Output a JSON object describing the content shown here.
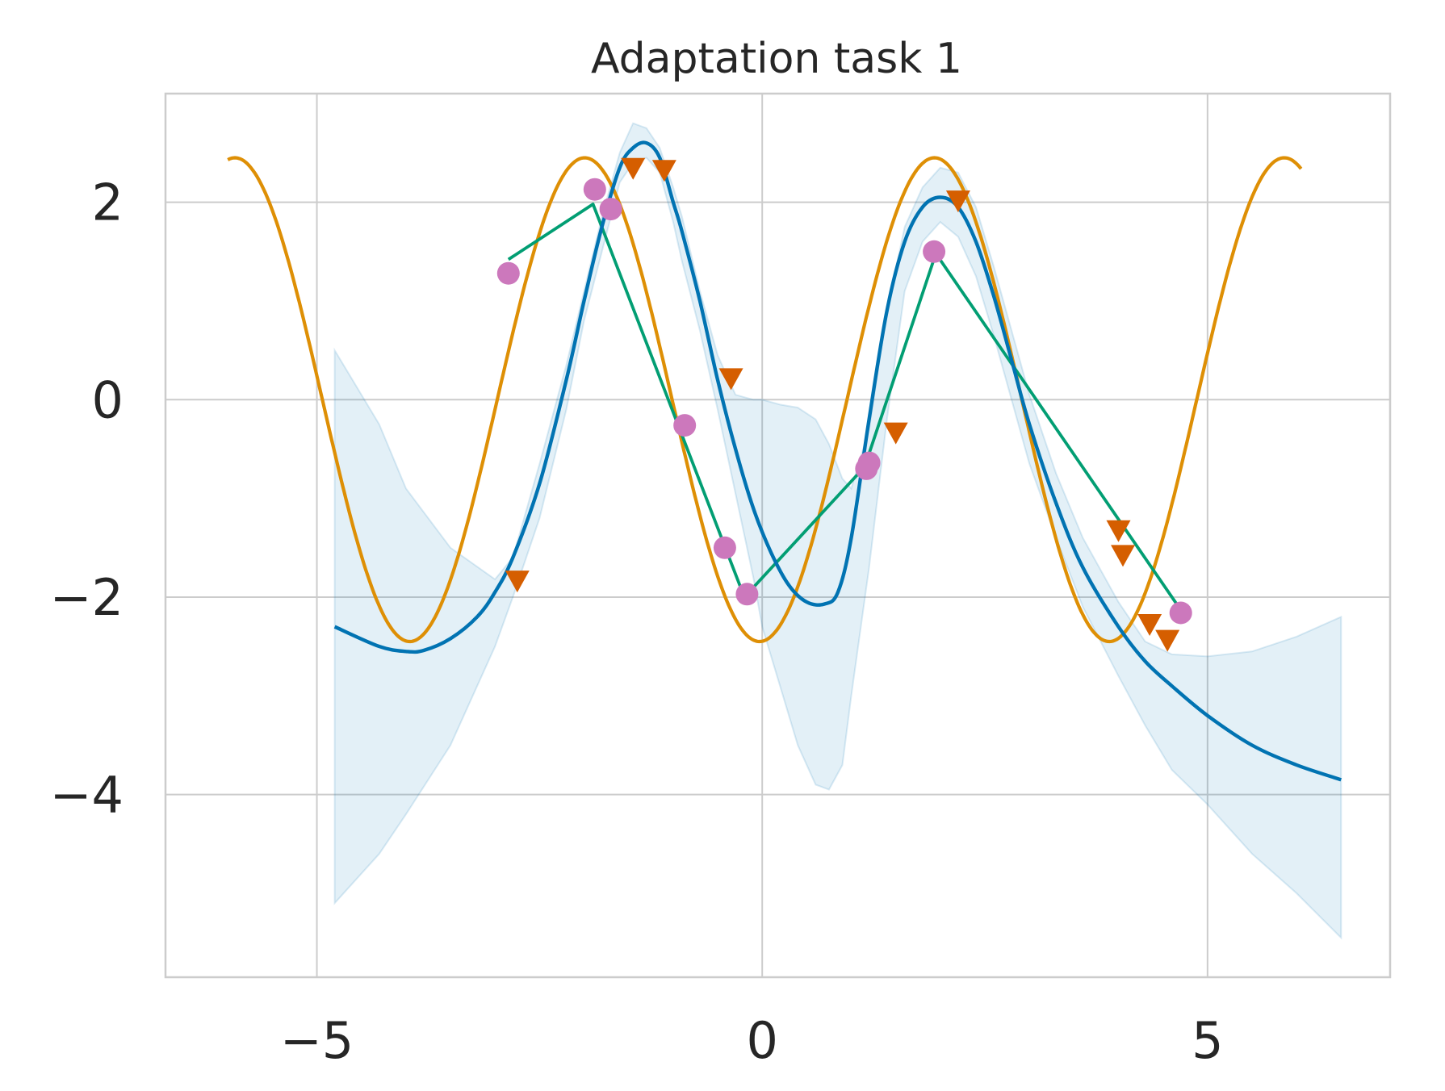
{
  "chart_data": {
    "type": "line",
    "title": "Adaptation task 1",
    "xlabel": "",
    "ylabel": "",
    "xlim": [
      -6.7,
      7.05
    ],
    "ylim": [
      -5.85,
      3.1
    ],
    "x_ticks": [
      -5,
      0,
      5
    ],
    "y_ticks": [
      -4,
      -2,
      0,
      2
    ],
    "x_tick_labels": [
      "−5",
      "0",
      "5"
    ],
    "y_tick_labels": [
      "−4",
      "−2",
      "0",
      "2"
    ],
    "grid": true,
    "legend": "none",
    "colors": {
      "ground_truth": "#de8f05",
      "prediction_mean": "#0173b2",
      "uncertainty_band": "#0173b2",
      "context_line": "#029e73",
      "context_points": "#cc78bc",
      "query_points": "#d55e00",
      "grid": "#cccccc",
      "axes_edge": "#cccccc"
    },
    "series": [
      {
        "kind": "ground_truth_curve",
        "function": {
          "amplitude": 2.45,
          "frequency": 1.6,
          "phase": 4.76
        },
        "x_range": [
          -6.0,
          6.05
        ]
      },
      {
        "kind": "prediction_mean",
        "x": [
          -4.8,
          -4.3,
          -4.0,
          -3.8,
          -3.5,
          -3.2,
          -3.0,
          -2.8,
          -2.5,
          -2.2,
          -2.0,
          -1.8,
          -1.6,
          -1.45,
          -1.3,
          -1.15,
          -1.0,
          -0.9,
          -0.7,
          -0.5,
          -0.3,
          -0.1,
          0.1,
          0.3,
          0.5,
          0.7,
          0.85,
          1.0,
          1.2,
          1.4,
          1.6,
          1.8,
          2.0,
          2.2,
          2.4,
          2.6,
          2.8,
          3.0,
          3.3,
          3.6,
          4.0,
          4.3,
          4.6,
          5.0,
          5.5,
          6.0,
          6.5
        ],
        "y": [
          -2.3,
          -2.5,
          -2.55,
          -2.54,
          -2.42,
          -2.2,
          -1.95,
          -1.6,
          -0.85,
          0.2,
          1.0,
          1.75,
          2.35,
          2.55,
          2.6,
          2.45,
          2.0,
          1.7,
          1.0,
          0.2,
          -0.5,
          -1.1,
          -1.55,
          -1.88,
          -2.05,
          -2.07,
          -1.95,
          -1.4,
          -0.2,
          0.9,
          1.6,
          1.95,
          2.05,
          1.95,
          1.6,
          1.05,
          0.4,
          -0.25,
          -1.05,
          -1.7,
          -2.3,
          -2.65,
          -2.9,
          -3.2,
          -3.5,
          -3.7,
          -3.85
        ]
      },
      {
        "kind": "uncertainty_band",
        "x": [
          -4.8,
          -4.3,
          -4.0,
          -3.5,
          -3.0,
          -2.8,
          -2.5,
          -2.2,
          -2.0,
          -1.8,
          -1.6,
          -1.45,
          -1.3,
          -1.15,
          -1.0,
          -0.9,
          -0.7,
          -0.5,
          -0.3,
          -0.1,
          0.0,
          0.2,
          0.4,
          0.6,
          0.75,
          0.9,
          1.0,
          1.2,
          1.4,
          1.6,
          1.8,
          2.0,
          2.2,
          2.4,
          2.6,
          2.8,
          3.0,
          3.3,
          3.6,
          4.0,
          4.3,
          4.6,
          5.0,
          5.5,
          6.0,
          6.5
        ],
        "upper": [
          0.5,
          -0.25,
          -0.9,
          -1.5,
          -1.82,
          -1.6,
          -0.65,
          0.35,
          1.1,
          1.85,
          2.5,
          2.8,
          2.75,
          2.55,
          2.15,
          1.85,
          1.1,
          0.45,
          0.05,
          0.0,
          0.0,
          -0.05,
          -0.08,
          -0.2,
          -0.45,
          -0.8,
          -0.9,
          -0.3,
          0.9,
          1.75,
          2.15,
          2.35,
          2.3,
          1.95,
          1.35,
          0.7,
          0.05,
          -0.75,
          -1.4,
          -2.05,
          -2.45,
          -2.58,
          -2.6,
          -2.55,
          -2.4,
          -2.2
        ],
        "lower": [
          -5.1,
          -4.6,
          -4.2,
          -3.5,
          -2.5,
          -2.0,
          -1.2,
          -0.1,
          0.8,
          1.5,
          2.2,
          2.4,
          2.45,
          2.3,
          1.8,
          1.4,
          0.7,
          -0.1,
          -0.95,
          -1.8,
          -2.3,
          -2.9,
          -3.5,
          -3.9,
          -3.95,
          -3.7,
          -3.0,
          -1.7,
          -0.2,
          1.1,
          1.6,
          1.8,
          1.65,
          1.25,
          0.65,
          0.0,
          -0.65,
          -1.4,
          -2.1,
          -2.8,
          -3.3,
          -3.75,
          -4.1,
          -4.6,
          -5.0,
          -5.45
        ]
      },
      {
        "kind": "context_line",
        "x": [
          -2.85,
          -1.9,
          -0.2,
          1.15,
          1.95,
          4.7
        ],
        "y": [
          1.42,
          1.98,
          -2.0,
          -0.68,
          1.48,
          -2.13
        ]
      },
      {
        "kind": "context_points",
        "x": [
          -2.85,
          -1.88,
          -1.7,
          -0.87,
          -0.42,
          -0.17,
          1.17,
          1.2,
          1.93,
          4.7
        ],
        "y": [
          1.28,
          2.13,
          1.93,
          -0.26,
          -1.5,
          -1.97,
          -0.7,
          -0.64,
          1.5,
          -2.16
        ]
      },
      {
        "kind": "query_points",
        "x": [
          -2.75,
          -1.45,
          -1.1,
          -0.35,
          1.5,
          2.2,
          4.0,
          4.05,
          4.35,
          4.55
        ],
        "y": [
          -1.83,
          2.35,
          2.33,
          0.22,
          -0.33,
          2.02,
          -1.32,
          -1.57,
          -2.27,
          -2.43
        ]
      }
    ]
  }
}
